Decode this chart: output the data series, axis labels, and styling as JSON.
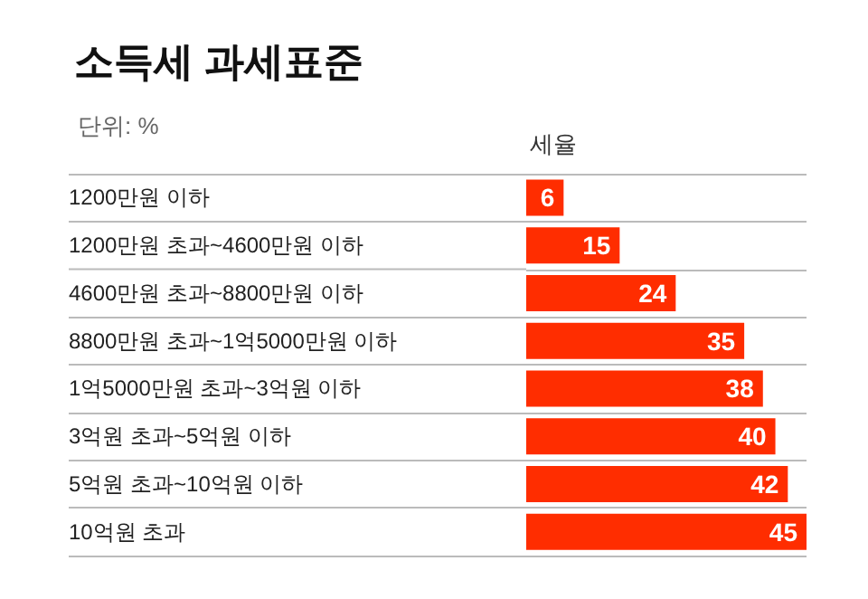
{
  "chart_data": {
    "type": "bar",
    "orientation": "horizontal",
    "title": "소득세 과세표준",
    "subtitle": "단위: %",
    "xlabel": "세율",
    "categories": [
      "1200만원 이하",
      "1200만원 초과~4600만원 이하",
      "4600만원 초과~8800만원 이하",
      "8800만원 초과~1억5000만원 이하",
      "1억5000만원 초과~3억원 이하",
      "3억원 초과~5억원 이하",
      "5억원 초과~10억원 이하",
      "10억원 초과"
    ],
    "values": [
      6,
      15,
      24,
      35,
      38,
      40,
      42,
      45
    ],
    "color": "#ff2d00",
    "data_labels": true,
    "grid": "y",
    "xlim": [
      0,
      45
    ]
  }
}
